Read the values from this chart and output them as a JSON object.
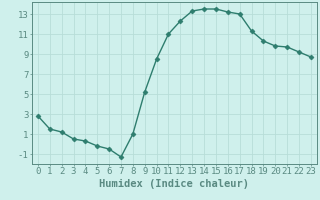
{
  "x": [
    0,
    1,
    2,
    3,
    4,
    5,
    6,
    7,
    8,
    9,
    10,
    11,
    12,
    13,
    14,
    15,
    16,
    17,
    18,
    19,
    20,
    21,
    22,
    23
  ],
  "y": [
    2.8,
    1.5,
    1.2,
    0.5,
    0.3,
    -0.2,
    -0.5,
    -1.3,
    1.0,
    5.2,
    8.5,
    11.0,
    12.3,
    13.3,
    13.5,
    13.5,
    13.2,
    13.0,
    11.3,
    10.3,
    9.8,
    9.7,
    9.2,
    8.7
  ],
  "line_color": "#2e7d6e",
  "marker": "D",
  "marker_size": 2.5,
  "linewidth": 1.0,
  "bg_color": "#cff0ec",
  "grid_color": "#b8ddd8",
  "xlabel": "Humidex (Indice chaleur)",
  "xlim": [
    -0.5,
    23.5
  ],
  "ylim": [
    -2.0,
    14.2
  ],
  "xticks": [
    0,
    1,
    2,
    3,
    4,
    5,
    6,
    7,
    8,
    9,
    10,
    11,
    12,
    13,
    14,
    15,
    16,
    17,
    18,
    19,
    20,
    21,
    22,
    23
  ],
  "yticks": [
    -1,
    1,
    3,
    5,
    7,
    9,
    11,
    13
  ],
  "xlabel_fontsize": 7.5,
  "tick_fontsize": 6.5,
  "spine_color": "#5a8a82"
}
